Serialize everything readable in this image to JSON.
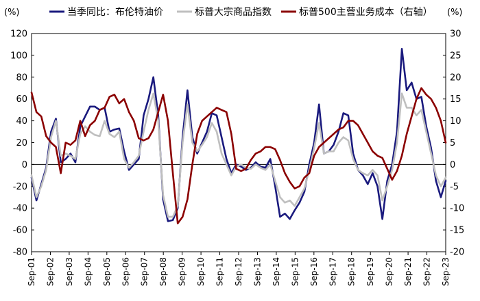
{
  "chart_data": {
    "type": "line",
    "title": "",
    "left_axis": {
      "unit_label": "(%)",
      "ylim": [
        -80,
        120
      ],
      "ticks": [
        -80,
        -60,
        -40,
        -20,
        0,
        20,
        40,
        60,
        80,
        100,
        120
      ]
    },
    "right_axis": {
      "unit_label": "(%)",
      "ylim": [
        -20,
        30
      ],
      "ticks": [
        -20,
        -15,
        -10,
        -5,
        0,
        5,
        10,
        15,
        20,
        25,
        30
      ]
    },
    "grid": false,
    "legend_placement": "top",
    "x": {
      "start_year": 2001,
      "end_year": 2023,
      "tick_labels": [
        "Sep-01",
        "Sep-02",
        "Sep-03",
        "Sep-04",
        "Sep-05",
        "Sep-06",
        "Sep-07",
        "Sep-08",
        "Sep-09",
        "Sep-10",
        "Sep-11",
        "Sep-12",
        "Sep-13",
        "Sep-14",
        "Sep-15",
        "Sep-16",
        "Sep-17",
        "Sep-18",
        "Sep-19",
        "Sep-20",
        "Sep-21",
        "Sep-22",
        "Sep-23"
      ]
    },
    "series": [
      {
        "name": "当季同比：布伦特油价",
        "axis": "left",
        "color": "#1a1a7e",
        "values": [
          -12,
          -33,
          -18,
          -3,
          30,
          42,
          2,
          5,
          10,
          2,
          35,
          44,
          53,
          53,
          50,
          52,
          30,
          32,
          33,
          12,
          -5,
          0,
          5,
          45,
          60,
          80,
          45,
          -32,
          -52,
          -51,
          -40,
          25,
          68,
          25,
          10,
          20,
          30,
          47,
          45,
          25,
          5,
          -8,
          0,
          -2,
          -5,
          -3,
          2,
          -2,
          -3,
          5,
          -20,
          -48,
          -45,
          -50,
          -42,
          -35,
          -25,
          0,
          20,
          55,
          10,
          12,
          18,
          30,
          47,
          45,
          10,
          -5,
          -10,
          -18,
          -8,
          -20,
          -50,
          -15,
          0,
          30,
          106,
          68,
          75,
          60,
          62,
          35,
          15,
          -15,
          -30,
          -15
        ]
      },
      {
        "name": "标普大宗商品指数",
        "axis": "left",
        "color": "#bfbfbf",
        "values": [
          -10,
          -30,
          -20,
          -5,
          25,
          40,
          8,
          10,
          8,
          5,
          28,
          35,
          30,
          27,
          26,
          40,
          28,
          25,
          30,
          5,
          -3,
          2,
          8,
          30,
          50,
          65,
          40,
          -28,
          -48,
          -48,
          -38,
          20,
          55,
          20,
          12,
          18,
          25,
          38,
          30,
          10,
          0,
          -10,
          -2,
          0,
          -3,
          -4,
          0,
          -3,
          -5,
          0,
          -15,
          -30,
          -35,
          -33,
          -38,
          -30,
          -22,
          -5,
          15,
          38,
          10,
          12,
          12,
          20,
          25,
          22,
          5,
          -5,
          -8,
          -10,
          -5,
          -10,
          -33,
          -20,
          -5,
          20,
          65,
          52,
          52,
          45,
          50,
          30,
          10,
          -10,
          -20,
          -12
        ]
      },
      {
        "name": "标普500主营业务成本（右轴）",
        "axis": "right",
        "color": "#8b0000",
        "values": [
          16.5,
          12,
          11,
          6.5,
          5,
          4,
          -2,
          5,
          4.5,
          5.5,
          10,
          6.5,
          9,
          10,
          12.5,
          13,
          15.5,
          16,
          14,
          15,
          12,
          10,
          6,
          5.5,
          6,
          8,
          12,
          16,
          10,
          -2,
          -13.5,
          -12,
          -8,
          0,
          7,
          10,
          11,
          12,
          13,
          12.5,
          12,
          7,
          -1,
          -1.5,
          -1,
          1,
          2.5,
          3,
          4,
          4,
          3.5,
          1,
          -2,
          -4,
          -5.5,
          -5,
          -3,
          -2,
          2,
          4,
          5,
          6,
          7,
          8,
          8.5,
          10,
          10,
          9,
          7,
          5,
          3,
          2,
          1.5,
          -1,
          -3.5,
          -1.5,
          2,
          7,
          11,
          15,
          17.5,
          16,
          15,
          13,
          10,
          5
        ]
      }
    ]
  }
}
